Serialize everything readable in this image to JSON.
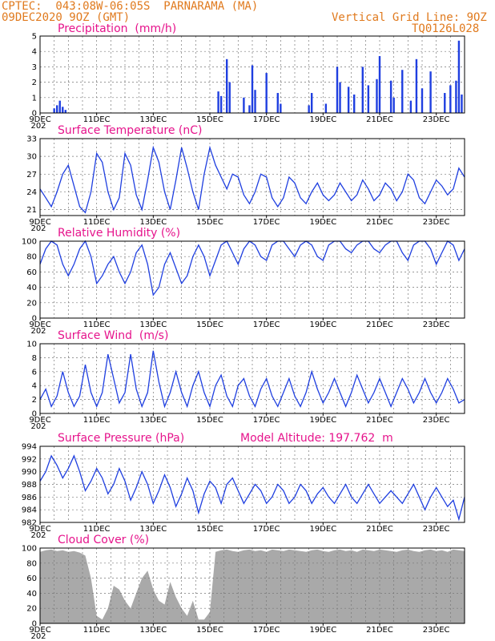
{
  "header": {
    "line1": "CPTEC:  043:08W-06:05S  PARNARAMA (MA)",
    "line2": "09DEC2020 9OZ (GMT)",
    "grid_note": "Vertical Grid Line: 9OZ",
    "code": "TQ0126L028"
  },
  "colors": {
    "header": "#e07a1e",
    "title": "#e6148c",
    "line": "#1f3fe0",
    "bar": "#1f3fe0",
    "cloud": "#a9a9a9"
  },
  "x_tick_labels": [
    "9DEC",
    "11DEC",
    "13DEC",
    "15DEC",
    "17DEC",
    "19DEC",
    "21DEC",
    "23DEC"
  ],
  "x_range_days": [
    9,
    24
  ],
  "year_stub": "202",
  "chart_data": [
    {
      "id": "precip",
      "type": "bar",
      "title": "Precipitation  (mm/h)",
      "ylim": [
        0,
        5
      ],
      "yticks": [
        0,
        1,
        2,
        3,
        4,
        5
      ],
      "x": [
        9.5,
        9.6,
        9.7,
        9.8,
        9.9,
        15.3,
        15.4,
        15.6,
        15.7,
        16.2,
        16.4,
        16.5,
        16.6,
        17.0,
        17.4,
        17.5,
        18.5,
        18.6,
        19.1,
        19.5,
        19.6,
        19.9,
        20.1,
        20.4,
        20.6,
        20.9,
        21.0,
        21.4,
        21.5,
        21.8,
        22.1,
        22.3,
        22.5,
        22.8,
        23.3,
        23.5,
        23.7,
        23.8,
        23.9
      ],
      "values": [
        0.3,
        0.5,
        0.8,
        0.4,
        0.2,
        1.4,
        1.1,
        3.5,
        2.0,
        1.0,
        0.5,
        3.1,
        1.5,
        2.6,
        1.3,
        0.6,
        0.5,
        1.3,
        0.6,
        3.0,
        2.0,
        1.7,
        1.2,
        3.0,
        1.8,
        2.2,
        3.7,
        2.1,
        1.0,
        2.8,
        0.8,
        3.5,
        1.6,
        2.7,
        1.3,
        1.8,
        2.1,
        4.7,
        1.2
      ]
    },
    {
      "id": "temp",
      "type": "line",
      "title": "Surface Temperature (nC)",
      "ylim": [
        20,
        33
      ],
      "yticks": [
        21,
        24,
        27,
        30,
        33
      ],
      "x": [
        9.0,
        9.2,
        9.4,
        9.6,
        9.8,
        10.0,
        10.2,
        10.4,
        10.6,
        10.8,
        11.0,
        11.2,
        11.4,
        11.6,
        11.8,
        12.0,
        12.2,
        12.4,
        12.6,
        12.8,
        13.0,
        13.2,
        13.4,
        13.6,
        13.8,
        14.0,
        14.2,
        14.4,
        14.6,
        14.8,
        15.0,
        15.2,
        15.4,
        15.6,
        15.8,
        16.0,
        16.2,
        16.4,
        16.6,
        16.8,
        17.0,
        17.2,
        17.4,
        17.6,
        17.8,
        18.0,
        18.2,
        18.4,
        18.6,
        18.8,
        19.0,
        19.2,
        19.4,
        19.6,
        19.8,
        20.0,
        20.2,
        20.4,
        20.6,
        20.8,
        21.0,
        21.2,
        21.4,
        21.6,
        21.8,
        22.0,
        22.2,
        22.4,
        22.6,
        22.8,
        23.0,
        23.2,
        23.4,
        23.6,
        23.8,
        24.0
      ],
      "values": [
        24.5,
        23,
        21.5,
        24,
        27,
        28.5,
        25,
        21.5,
        20.5,
        24,
        30.5,
        29,
        24,
        21,
        23,
        30.5,
        28.5,
        23.5,
        21,
        26,
        31.5,
        29,
        24,
        21,
        26,
        31.5,
        28,
        24,
        21,
        27,
        31.5,
        28.5,
        26.5,
        24.5,
        27,
        26.5,
        23.5,
        22,
        24,
        27,
        26.5,
        23,
        21.5,
        23,
        26.5,
        25.5,
        23,
        22,
        24,
        25.5,
        23.5,
        22.5,
        23.5,
        25.5,
        24,
        22.5,
        23.5,
        26,
        24.5,
        22.5,
        23.5,
        25.5,
        24.5,
        22.5,
        24,
        27,
        26,
        23,
        22,
        24,
        26,
        25,
        23.5,
        24.5,
        28,
        26.5
      ]
    },
    {
      "id": "rh",
      "type": "line",
      "title": "Relative Humidity (%)",
      "ylim": [
        0,
        100
      ],
      "yticks": [
        0,
        20,
        40,
        60,
        80,
        100
      ],
      "x": [
        9.0,
        9.2,
        9.4,
        9.6,
        9.8,
        10.0,
        10.2,
        10.4,
        10.6,
        10.8,
        11.0,
        11.2,
        11.4,
        11.6,
        11.8,
        12.0,
        12.2,
        12.4,
        12.6,
        12.8,
        13.0,
        13.2,
        13.4,
        13.6,
        13.8,
        14.0,
        14.2,
        14.4,
        14.6,
        14.8,
        15.0,
        15.2,
        15.4,
        15.6,
        15.8,
        16.0,
        16.2,
        16.4,
        16.6,
        16.8,
        17.0,
        17.2,
        17.4,
        17.6,
        17.8,
        18.0,
        18.2,
        18.4,
        18.6,
        18.8,
        19.0,
        19.2,
        19.4,
        19.6,
        19.8,
        20.0,
        20.2,
        20.4,
        20.6,
        20.8,
        21.0,
        21.2,
        21.4,
        21.6,
        21.8,
        22.0,
        22.2,
        22.4,
        22.6,
        22.8,
        23.0,
        23.2,
        23.4,
        23.6,
        23.8,
        24.0
      ],
      "values": [
        70,
        90,
        100,
        95,
        70,
        55,
        70,
        90,
        100,
        80,
        45,
        55,
        70,
        80,
        60,
        45,
        60,
        85,
        95,
        70,
        30,
        40,
        70,
        85,
        65,
        45,
        55,
        80,
        95,
        80,
        55,
        75,
        95,
        100,
        85,
        70,
        90,
        100,
        95,
        80,
        75,
        95,
        100,
        100,
        90,
        80,
        95,
        100,
        95,
        80,
        75,
        95,
        100,
        100,
        90,
        85,
        95,
        100,
        100,
        90,
        85,
        95,
        100,
        100,
        85,
        75,
        95,
        100,
        100,
        90,
        70,
        85,
        100,
        95,
        75,
        90
      ]
    },
    {
      "id": "wind",
      "type": "line",
      "title": "Surface Wind  (m/s)",
      "ylim": [
        0,
        10
      ],
      "yticks": [
        0,
        2,
        4,
        6,
        8,
        10
      ],
      "x": [
        9.0,
        9.2,
        9.4,
        9.6,
        9.8,
        10.0,
        10.2,
        10.4,
        10.6,
        10.8,
        11.0,
        11.2,
        11.4,
        11.6,
        11.8,
        12.0,
        12.2,
        12.4,
        12.6,
        12.8,
        13.0,
        13.2,
        13.4,
        13.6,
        13.8,
        14.0,
        14.2,
        14.4,
        14.6,
        14.8,
        15.0,
        15.2,
        15.4,
        15.6,
        15.8,
        16.0,
        16.2,
        16.4,
        16.6,
        16.8,
        17.0,
        17.2,
        17.4,
        17.6,
        17.8,
        18.0,
        18.2,
        18.4,
        18.6,
        18.8,
        19.0,
        19.2,
        19.4,
        19.6,
        19.8,
        20.0,
        20.2,
        20.4,
        20.6,
        20.8,
        21.0,
        21.2,
        21.4,
        21.6,
        21.8,
        22.0,
        22.2,
        22.4,
        22.6,
        22.8,
        23.0,
        23.2,
        23.4,
        23.6,
        23.8,
        24.0
      ],
      "values": [
        2,
        3.5,
        1,
        2.5,
        6,
        3,
        1,
        2.5,
        7,
        3,
        1,
        3,
        8.5,
        5,
        1.5,
        3,
        8.5,
        3.5,
        1,
        3,
        9,
        4.5,
        1,
        3,
        6,
        3,
        1,
        4,
        6,
        3,
        1,
        4,
        5.5,
        2.5,
        1,
        4,
        5,
        2.5,
        1,
        3.5,
        5,
        2.5,
        1,
        3,
        5,
        2.5,
        1,
        3,
        6,
        3.5,
        1.5,
        3,
        5,
        3,
        1,
        3,
        5.5,
        3.5,
        1.5,
        3,
        5,
        3,
        1,
        3,
        5,
        3.5,
        1.5,
        3,
        5,
        3,
        1.5,
        3,
        5,
        3.5,
        1.5,
        2
      ]
    },
    {
      "id": "pres",
      "type": "line",
      "title": "Surface Pressure (hPa)",
      "subtitle": "Model Altitude: 197.762  m",
      "ylim": [
        982,
        994
      ],
      "yticks": [
        982,
        984,
        986,
        988,
        990,
        992,
        994
      ],
      "x": [
        9.0,
        9.2,
        9.4,
        9.6,
        9.8,
        10.0,
        10.2,
        10.4,
        10.6,
        10.8,
        11.0,
        11.2,
        11.4,
        11.6,
        11.8,
        12.0,
        12.2,
        12.4,
        12.6,
        12.8,
        13.0,
        13.2,
        13.4,
        13.6,
        13.8,
        14.0,
        14.2,
        14.4,
        14.6,
        14.8,
        15.0,
        15.2,
        15.4,
        15.6,
        15.8,
        16.0,
        16.2,
        16.4,
        16.6,
        16.8,
        17.0,
        17.2,
        17.4,
        17.6,
        17.8,
        18.0,
        18.2,
        18.4,
        18.6,
        18.8,
        19.0,
        19.2,
        19.4,
        19.6,
        19.8,
        20.0,
        20.2,
        20.4,
        20.6,
        20.8,
        21.0,
        21.2,
        21.4,
        21.6,
        21.8,
        22.0,
        22.2,
        22.4,
        22.6,
        22.8,
        23.0,
        23.2,
        23.4,
        23.6,
        23.8,
        24.0
      ],
      "values": [
        988.5,
        990,
        992.5,
        991,
        989,
        990.5,
        992.5,
        990,
        987,
        988.5,
        990.5,
        989,
        986.5,
        988,
        990.5,
        988.5,
        985.5,
        987.5,
        990,
        988,
        985,
        987,
        989.5,
        987.5,
        984.5,
        986.5,
        989,
        987,
        983.5,
        986.5,
        988.5,
        987.5,
        985,
        988,
        989,
        987,
        985,
        986.5,
        988,
        987,
        985,
        986,
        988,
        987,
        985,
        986,
        988,
        987,
        985,
        986.5,
        987.5,
        986,
        985,
        986.5,
        988,
        986,
        985,
        986.5,
        988,
        986.5,
        985,
        986,
        987,
        986,
        985,
        986.5,
        988,
        986,
        984,
        986,
        987.5,
        986,
        984.5,
        985.5,
        982.5,
        986
      ]
    },
    {
      "id": "cloud",
      "type": "area",
      "title": "Cloud Cover (%)",
      "ylim": [
        0,
        100
      ],
      "yticks": [
        0,
        20,
        40,
        60,
        80,
        100
      ],
      "x": [
        9.0,
        9.2,
        9.4,
        9.6,
        9.8,
        10.0,
        10.2,
        10.4,
        10.6,
        10.8,
        11.0,
        11.2,
        11.4,
        11.6,
        11.8,
        12.0,
        12.2,
        12.4,
        12.6,
        12.8,
        13.0,
        13.2,
        13.4,
        13.6,
        13.8,
        14.0,
        14.2,
        14.4,
        14.6,
        14.8,
        15.0,
        15.2,
        15.4,
        15.6,
        15.8,
        16.0,
        16.2,
        16.4,
        16.6,
        16.8,
        17.0,
        17.2,
        17.4,
        17.6,
        17.8,
        18.0,
        18.2,
        18.4,
        18.6,
        18.8,
        19.0,
        19.2,
        19.4,
        19.6,
        19.8,
        20.0,
        20.2,
        20.4,
        20.6,
        20.8,
        21.0,
        21.2,
        21.4,
        21.6,
        21.8,
        22.0,
        22.2,
        22.4,
        22.6,
        22.8,
        23.0,
        23.2,
        23.4,
        23.6,
        23.8,
        24.0
      ],
      "values": [
        95,
        97,
        98,
        96,
        97,
        95,
        96,
        94,
        90,
        60,
        10,
        5,
        20,
        50,
        45,
        30,
        20,
        40,
        60,
        70,
        45,
        30,
        25,
        55,
        35,
        20,
        10,
        30,
        5,
        5,
        15,
        95,
        97,
        98,
        96,
        95,
        97,
        98,
        96,
        97,
        95,
        98,
        97,
        96,
        98,
        97,
        96,
        95,
        97,
        98,
        96,
        95,
        97,
        98,
        96,
        97,
        95,
        98,
        97,
        96,
        98,
        97,
        96,
        95,
        97,
        98,
        96,
        95,
        97,
        98,
        96,
        97,
        95,
        98,
        97,
        96
      ]
    }
  ]
}
